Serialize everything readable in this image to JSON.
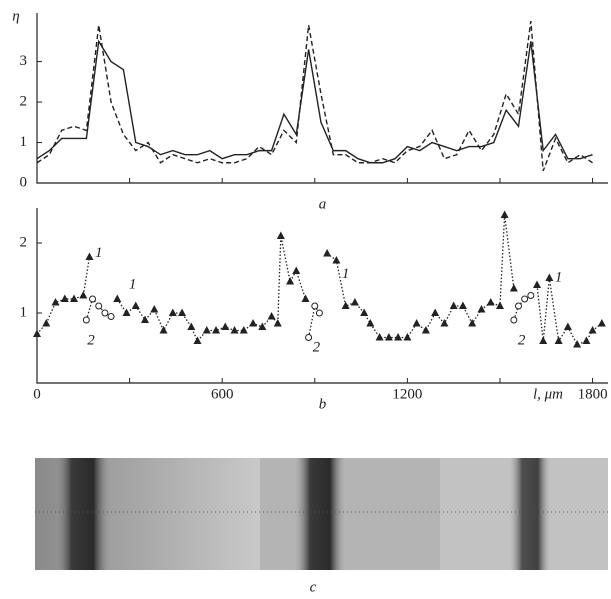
{
  "chart_data": [
    {
      "type": "line",
      "caption": "a",
      "ylabel": "η",
      "xlim": [
        0,
        1850
      ],
      "ylim": [
        0,
        4.2
      ],
      "yticks": [
        0,
        1,
        2,
        3
      ],
      "x": [
        0,
        40,
        80,
        120,
        160,
        200,
        240,
        280,
        320,
        360,
        400,
        440,
        480,
        520,
        560,
        600,
        640,
        680,
        720,
        760,
        800,
        840,
        880,
        920,
        960,
        1000,
        1040,
        1080,
        1120,
        1160,
        1200,
        1240,
        1280,
        1320,
        1360,
        1400,
        1440,
        1480,
        1520,
        1560,
        1600,
        1640,
        1680,
        1720,
        1760,
        1800
      ],
      "series": [
        {
          "style": "solid",
          "color": "#222",
          "values": [
            0.6,
            0.8,
            1.1,
            1.1,
            1.1,
            3.5,
            3.0,
            2.8,
            1.0,
            0.9,
            0.7,
            0.8,
            0.7,
            0.7,
            0.8,
            0.6,
            0.7,
            0.7,
            0.8,
            0.8,
            1.7,
            1.2,
            3.3,
            1.5,
            0.8,
            0.8,
            0.6,
            0.5,
            0.5,
            0.6,
            0.9,
            0.8,
            1.0,
            0.9,
            0.8,
            0.9,
            0.9,
            1.0,
            1.8,
            1.4,
            3.5,
            0.8,
            1.2,
            0.6,
            0.6,
            0.7
          ]
        },
        {
          "style": "dashed",
          "color": "#222",
          "values": [
            0.5,
            0.7,
            1.3,
            1.4,
            1.3,
            3.9,
            2.0,
            1.2,
            0.8,
            1.0,
            0.5,
            0.7,
            0.6,
            0.5,
            0.6,
            0.5,
            0.5,
            0.6,
            0.9,
            0.7,
            1.3,
            1.0,
            3.9,
            2.2,
            0.7,
            0.7,
            0.5,
            0.5,
            0.6,
            0.5,
            0.8,
            0.9,
            1.3,
            0.6,
            0.7,
            1.3,
            0.8,
            1.2,
            2.2,
            1.7,
            4.0,
            0.3,
            1.1,
            0.5,
            0.7,
            0.5
          ]
        }
      ]
    },
    {
      "type": "scatter-line",
      "caption": "b",
      "xlabel": "l, μm",
      "xlim": [
        0,
        1850
      ],
      "ylim": [
        0,
        2.5
      ],
      "xticks": [
        0,
        600,
        1200,
        1800
      ],
      "xminorticks": [
        300,
        900,
        1500
      ],
      "yticks": [
        1,
        2
      ],
      "series": [
        {
          "name": "1",
          "marker": "triangle",
          "color": "#222",
          "x": [
            0,
            30,
            60,
            90,
            120,
            150,
            170,
            null,
            260,
            290,
            320,
            350,
            380,
            410,
            440,
            470,
            500,
            520,
            550,
            580,
            610,
            640,
            670,
            700,
            730,
            760,
            780,
            790,
            820,
            840,
            870,
            null,
            940,
            970,
            1000,
            1030,
            1060,
            1080,
            1110,
            1140,
            1170,
            1200,
            1230,
            1260,
            1290,
            1320,
            1350,
            1380,
            1410,
            1440,
            1470,
            1500,
            1515,
            1545,
            null,
            1620,
            1640,
            1660,
            1690,
            1720,
            1750,
            1780,
            1800,
            1830
          ],
          "values": [
            0.7,
            0.85,
            1.15,
            1.2,
            1.2,
            1.25,
            1.8,
            null,
            1.2,
            1.0,
            1.1,
            0.9,
            1.05,
            0.75,
            1.0,
            1.0,
            0.8,
            0.6,
            0.75,
            0.75,
            0.8,
            0.75,
            0.75,
            0.85,
            0.8,
            0.95,
            0.85,
            2.1,
            1.45,
            1.6,
            1.2,
            null,
            1.85,
            1.75,
            1.1,
            1.15,
            1.0,
            0.85,
            0.65,
            0.65,
            0.65,
            0.65,
            0.85,
            0.75,
            1.0,
            0.85,
            1.1,
            1.1,
            0.85,
            1.05,
            1.15,
            1.1,
            2.4,
            1.35,
            null,
            1.4,
            0.6,
            1.5,
            0.6,
            0.8,
            0.55,
            0.6,
            0.75,
            0.85
          ]
        },
        {
          "name": "2",
          "marker": "circle",
          "color": "#222",
          "x": [
            160,
            180,
            200,
            220,
            240,
            null,
            880,
            900,
            915,
            null,
            1545,
            1560,
            1580,
            1600
          ],
          "values": [
            0.9,
            1.2,
            1.1,
            1.0,
            0.95,
            null,
            0.65,
            1.1,
            1.0,
            null,
            0.9,
            1.1,
            1.2,
            1.25
          ]
        }
      ],
      "annotations": [
        {
          "text": "1",
          "x": 200,
          "y": 1.85
        },
        {
          "text": "1",
          "x": 310,
          "y": 1.4
        },
        {
          "text": "1",
          "x": 1000,
          "y": 1.55
        },
        {
          "text": "1",
          "x": 1690,
          "y": 1.5
        },
        {
          "text": "2",
          "x": 175,
          "y": 0.6
        },
        {
          "text": "2",
          "x": 905,
          "y": 0.5
        },
        {
          "text": "2",
          "x": 1570,
          "y": 0.6
        }
      ]
    }
  ],
  "photo": {
    "caption": "c"
  }
}
